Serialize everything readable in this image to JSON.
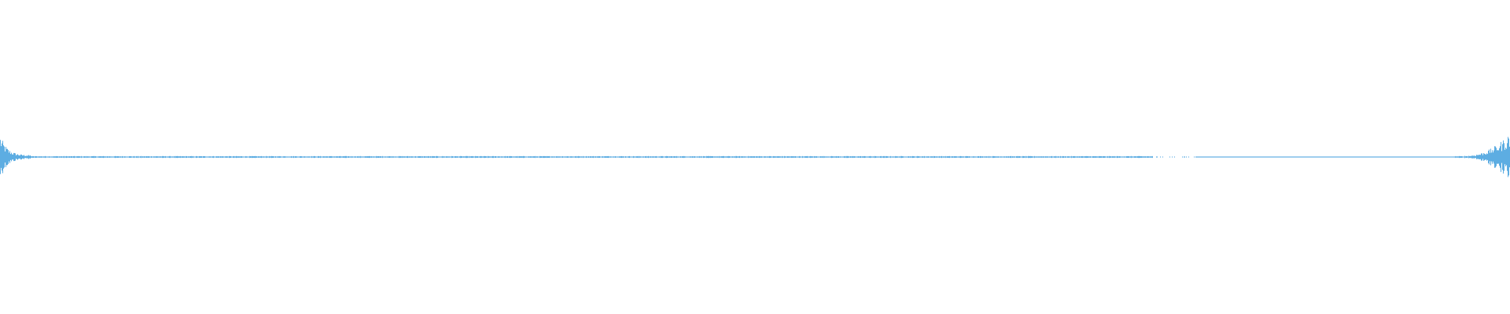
{
  "waveform": {
    "type": "audio-waveform",
    "colors": {
      "background": "#ffffff",
      "wave": "#5dade2"
    }
  }
}
